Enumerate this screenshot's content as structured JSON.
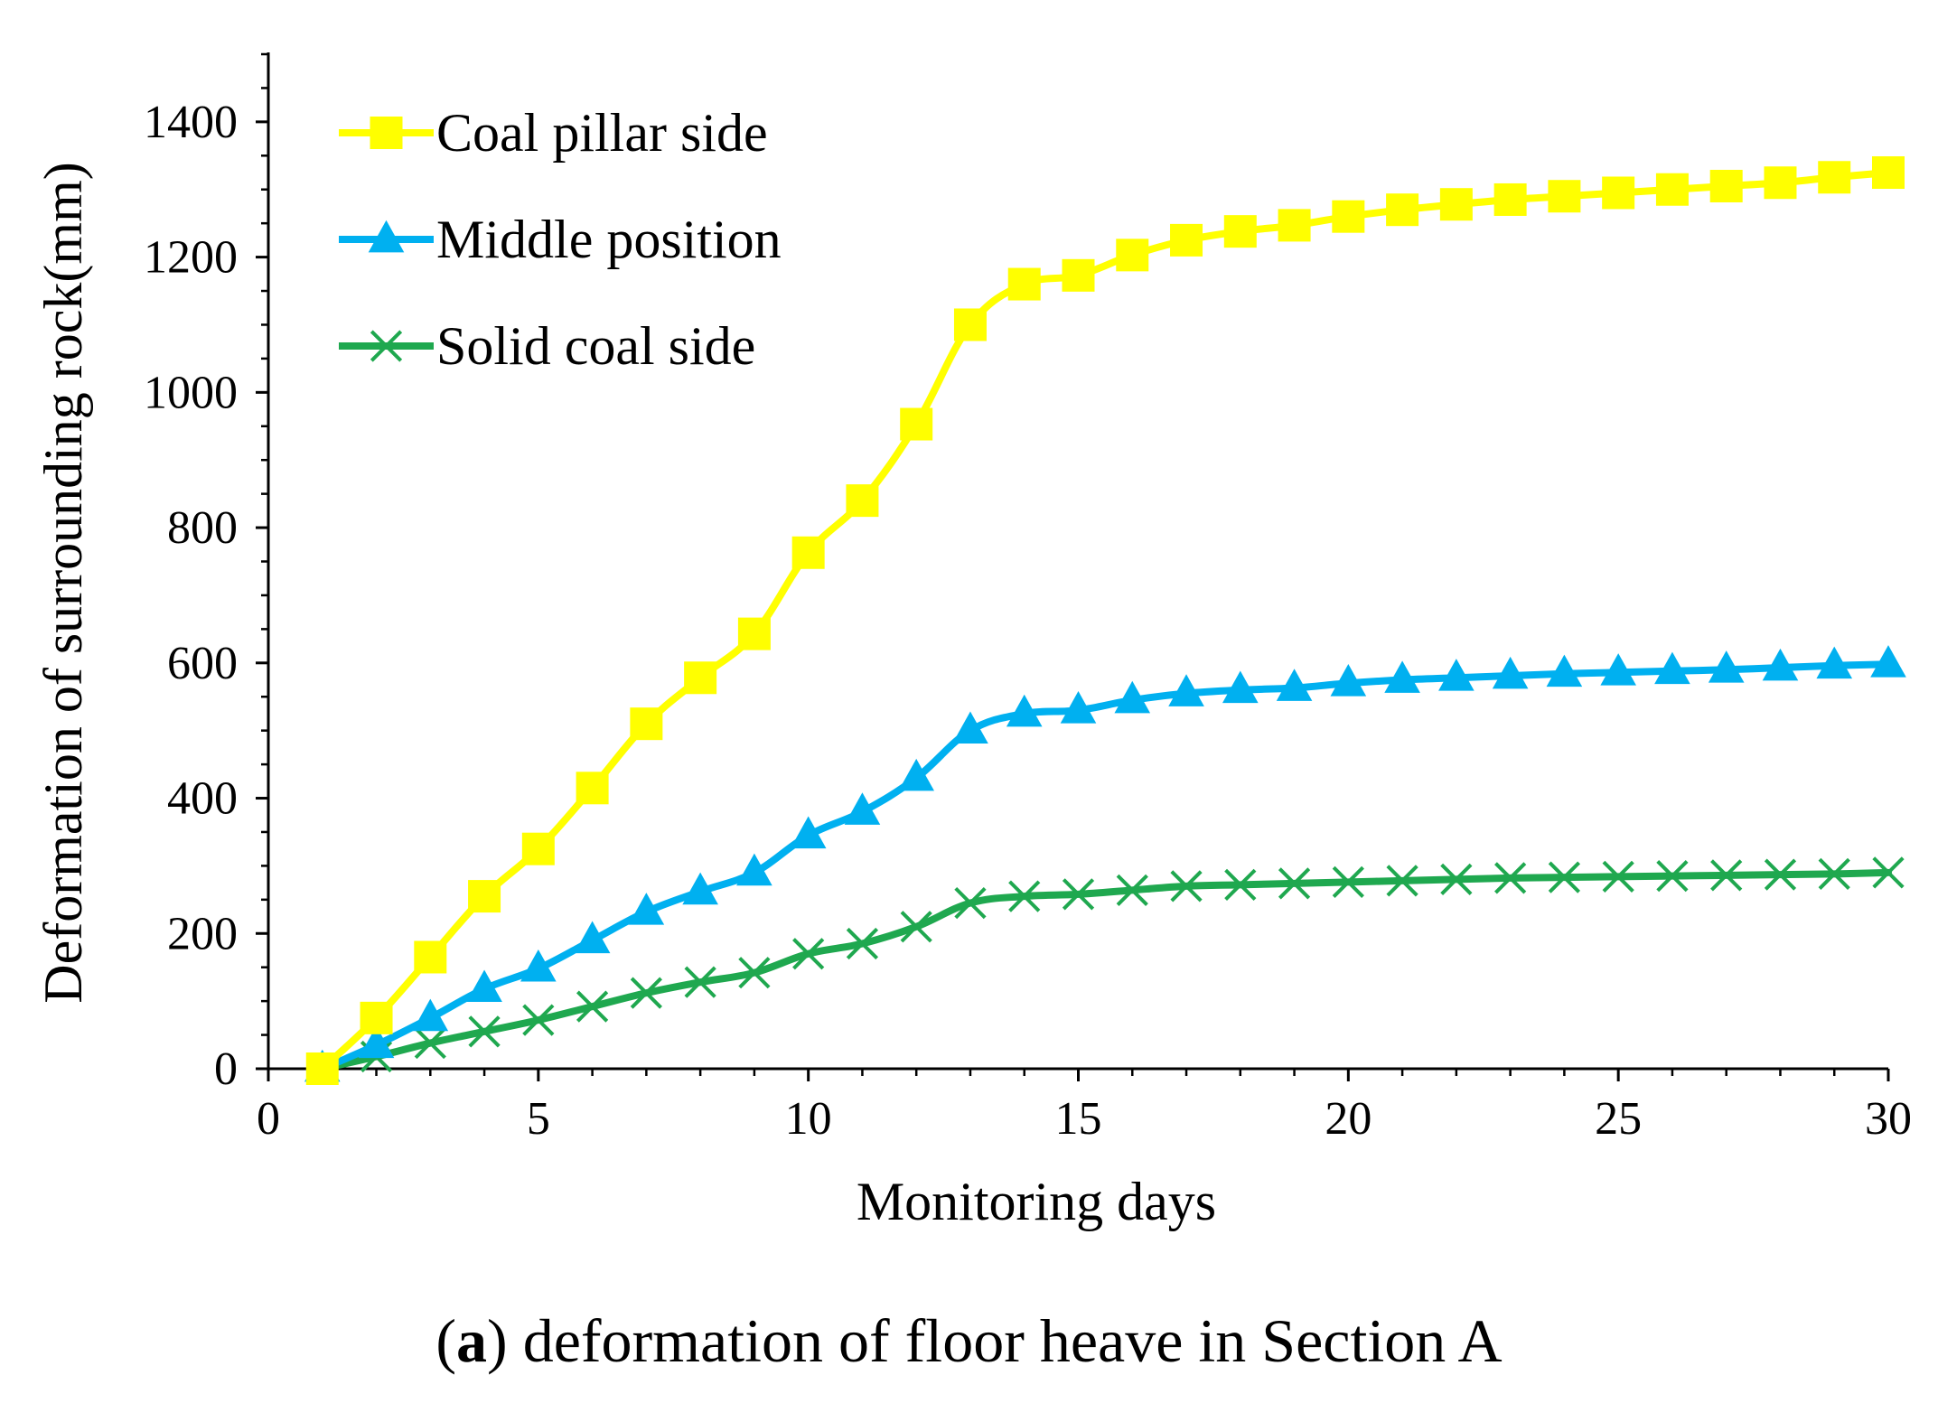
{
  "chart_data": {
    "type": "line",
    "xlabel": "Monitoring days",
    "ylabel": "Deformation of surrounding rock(mm)",
    "xlim": [
      0,
      30
    ],
    "ylim": [
      0,
      1500
    ],
    "xticks": [
      0,
      5,
      10,
      15,
      20,
      25,
      30
    ],
    "yticks": [
      0,
      200,
      400,
      600,
      800,
      1000,
      1200,
      1400
    ],
    "legend_position": "top-left",
    "x": [
      1,
      2,
      3,
      4,
      5,
      6,
      7,
      8,
      9,
      10,
      11,
      12,
      13,
      14,
      15,
      16,
      17,
      18,
      19,
      20,
      21,
      22,
      23,
      24,
      25,
      26,
      27,
      28,
      29,
      30
    ],
    "series": [
      {
        "name": "Coal pillar side",
        "color": "#FFFF00",
        "marker": "square",
        "values": [
          0,
          75,
          165,
          255,
          325,
          415,
          510,
          578,
          643,
          763,
          840,
          953,
          1100,
          1160,
          1173,
          1203,
          1225,
          1238,
          1247,
          1260,
          1270,
          1278,
          1285,
          1290,
          1295,
          1300,
          1305,
          1310,
          1318,
          1325
        ]
      },
      {
        "name": "Middle position",
        "color": "#00B0F0",
        "marker": "triangle",
        "values": [
          0,
          35,
          75,
          118,
          148,
          190,
          232,
          262,
          290,
          345,
          380,
          430,
          500,
          525,
          530,
          545,
          555,
          560,
          563,
          570,
          575,
          578,
          581,
          584,
          586,
          588,
          590,
          593,
          596,
          598
        ]
      },
      {
        "name": "Solid coal side",
        "color": "#1FA84F",
        "marker": "x",
        "values": [
          0,
          18,
          38,
          55,
          72,
          92,
          112,
          128,
          142,
          170,
          185,
          210,
          245,
          255,
          258,
          264,
          270,
          272,
          274,
          276,
          278,
          280,
          282,
          283,
          284,
          285,
          286,
          287,
          288,
          290
        ]
      }
    ]
  },
  "caption": {
    "label": "a",
    "text": ") deformation of floor heave in Section A"
  }
}
